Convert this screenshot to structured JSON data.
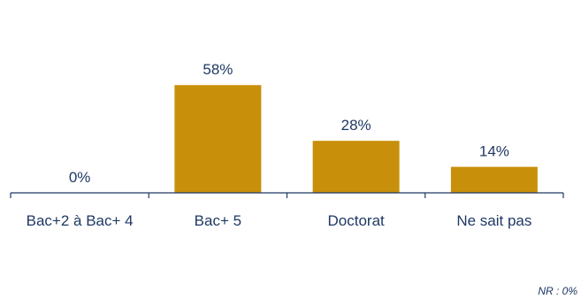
{
  "chart_data": {
    "type": "bar",
    "categories": [
      "Bac+2 à Bac+ 4",
      "Bac+ 5",
      "Doctorat",
      "Ne sait pas"
    ],
    "values": [
      0,
      58,
      28,
      14
    ],
    "data_labels": [
      "0%",
      "58%",
      "28%",
      "14%"
    ],
    "value_unit": "%",
    "title": "",
    "xlabel": "",
    "ylabel": "",
    "ylim": [
      0,
      60
    ],
    "grid": false,
    "legend": "none"
  },
  "note": "NR : 0%",
  "colors": {
    "bar": "#C8900A",
    "text": "#1F3864",
    "axis": "#1F3864"
  }
}
